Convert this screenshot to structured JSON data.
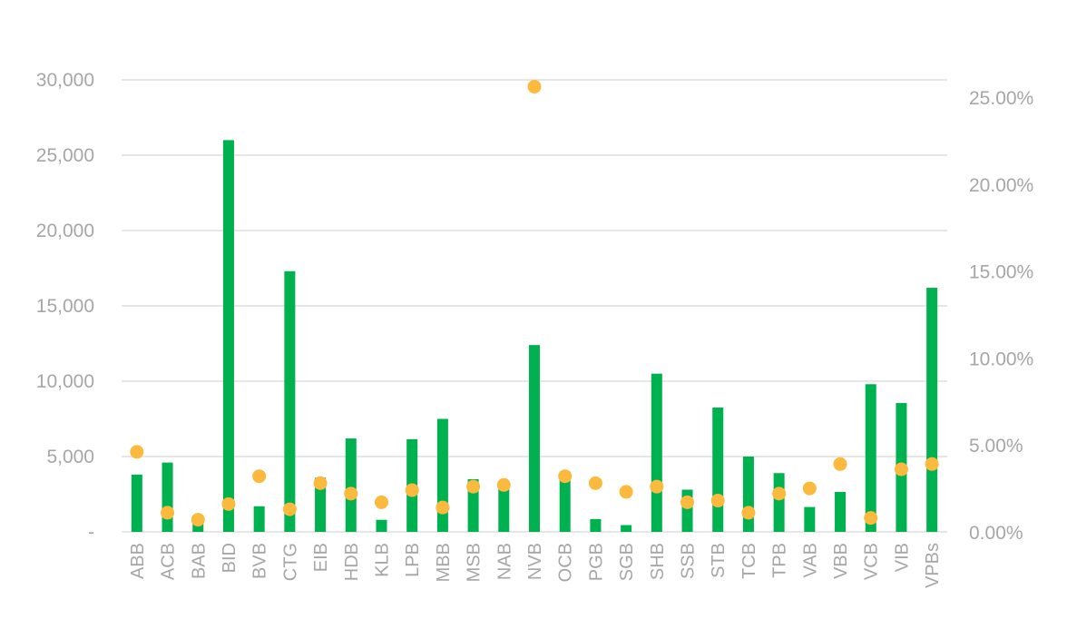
{
  "colors": {
    "bars": "#00b14f",
    "dots": "#fbb93e",
    "grid": "#e6e6e6",
    "text": "#a6a6a6"
  },
  "chart_data": {
    "type": "bar",
    "categories": [
      "ABB",
      "ACB",
      "BAB",
      "BID",
      "BVB",
      "CTG",
      "EIB",
      "HDB",
      "KLB",
      "LPB",
      "MBB",
      "MSB",
      "NAB",
      "NVB",
      "OCB",
      "PGB",
      "SGB",
      "SHB",
      "SSB",
      "STB",
      "TCB",
      "TPB",
      "VAB",
      "VBB",
      "VCB",
      "VIB",
      "VPBs"
    ],
    "series": [
      {
        "axis": "left",
        "kind": "bar",
        "values": [
          3800,
          4600,
          600,
          26000,
          1700,
          17300,
          3600,
          6200,
          800,
          6150,
          7500,
          3500,
          3400,
          12400,
          4000,
          850,
          450,
          10500,
          2800,
          8250,
          5000,
          3900,
          1650,
          2650,
          9800,
          8550,
          16200
        ]
      },
      {
        "axis": "right",
        "kind": "scatter",
        "values": [
          4.6,
          1.1,
          0.7,
          1.6,
          3.2,
          1.3,
          2.8,
          2.2,
          1.7,
          2.4,
          1.4,
          2.6,
          2.7,
          25.6,
          3.2,
          2.8,
          2.3,
          2.6,
          1.7,
          1.8,
          1.1,
          2.2,
          2.5,
          3.9,
          0.8,
          3.6,
          3.9
        ]
      }
    ],
    "y_left": {
      "ylim": [
        0,
        30000
      ],
      "ticks": [
        0,
        5000,
        10000,
        15000,
        20000,
        25000,
        30000
      ],
      "tick_labels": [
        "-",
        "5,000",
        "10,000",
        "15,000",
        "20,000",
        "25,000",
        "30,000"
      ]
    },
    "y_right": {
      "ylim": [
        0,
        26
      ],
      "ticks": [
        0,
        5,
        10,
        15,
        20,
        25
      ],
      "tick_labels": [
        "0.00%",
        "5.00%",
        "10.00%",
        "15.00%",
        "20.00%",
        "25.00%"
      ]
    },
    "grid": true,
    "legend": "none"
  }
}
